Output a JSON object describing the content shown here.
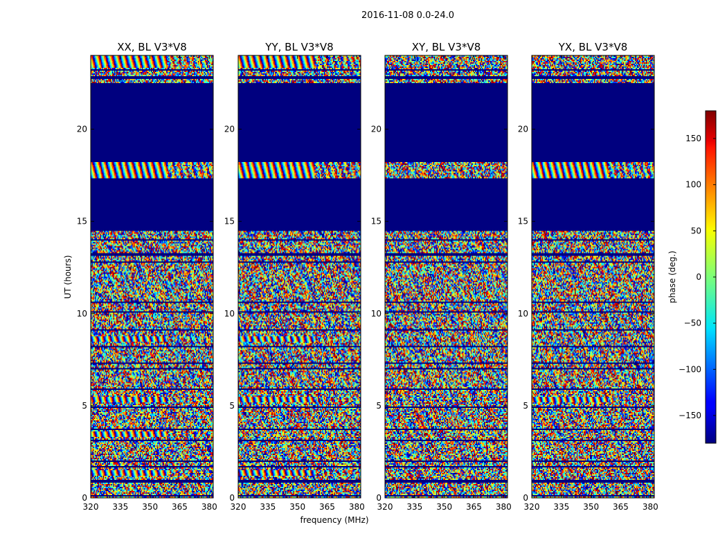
{
  "chart_data": {
    "type": "heatmap",
    "title": "2016-11-08 0.0-24.0",
    "xlabel": "frequency (MHz)",
    "ylabel": "UT (hours)",
    "xlim": [
      320,
      382
    ],
    "ylim": [
      0,
      24
    ],
    "xticks": [
      320,
      335,
      350,
      365,
      380
    ],
    "yticks": [
      0,
      5,
      10,
      15,
      20
    ],
    "colorbar": {
      "label": "phase (deg.)",
      "range": [
        -180,
        180
      ],
      "ticks": [
        -150,
        -100,
        -50,
        0,
        50,
        100,
        150
      ],
      "colormap": "jet"
    },
    "panels": [
      {
        "title": "XX, BL V3*V8",
        "fringes": [
          [
            23.3,
            24.0
          ],
          [
            17.3,
            18.2
          ],
          [
            5.2,
            5.5
          ],
          [
            1.2,
            1.5
          ],
          [
            8.5,
            8.8
          ],
          [
            3.3,
            3.6
          ]
        ]
      },
      {
        "title": "YY, BL V3*V8",
        "fringes": [
          [
            23.3,
            24.0
          ],
          [
            17.3,
            18.2
          ],
          [
            5.2,
            5.5
          ],
          [
            1.2,
            1.5
          ],
          [
            8.5,
            8.8
          ]
        ]
      },
      {
        "title": "XY, BL V3*V8",
        "fringes": []
      },
      {
        "title": "YX, BL V3*V8",
        "fringes": [
          [
            17.3,
            18.2
          ],
          [
            5.2,
            5.5
          ]
        ]
      }
    ],
    "flagged_ranges": [
      [
        18.2,
        22.5
      ],
      [
        14.5,
        17.3
      ]
    ],
    "flag_color": "#00007f",
    "line_rows": [
      0.1,
      0.9,
      1.7,
      2.0,
      3.1,
      3.7,
      4.9,
      5.9,
      7.0,
      7.3,
      8.2,
      9.1,
      10.1,
      10.6,
      12.8,
      13.2,
      14.0,
      22.8,
      23.2
    ]
  }
}
